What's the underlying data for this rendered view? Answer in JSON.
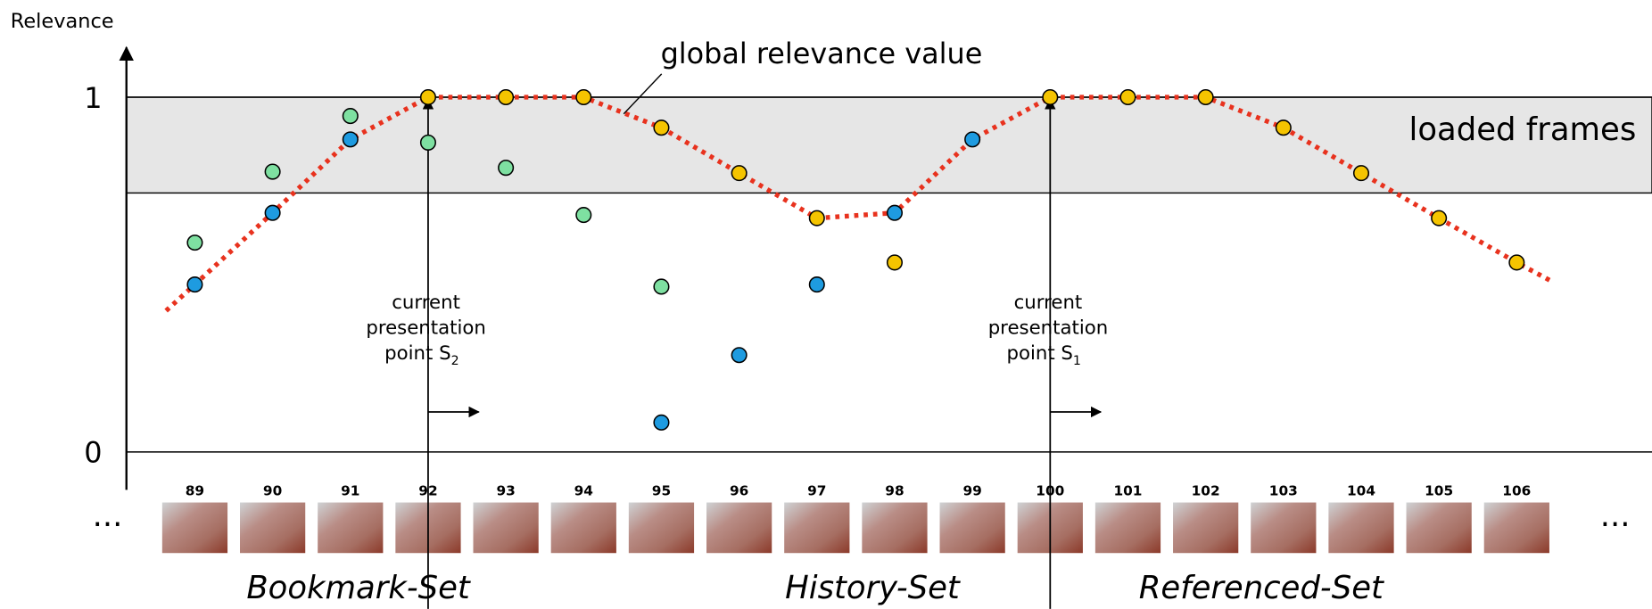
{
  "chart_data": {
    "type": "scatter",
    "y_label": "Relevance",
    "ylim": [
      0,
      1.14
    ],
    "yticks": [
      0,
      1
    ],
    "xlim": [
      88.12,
      107.74
    ],
    "xticks": [
      89,
      90,
      91,
      92,
      93,
      94,
      95,
      96,
      97,
      98,
      99,
      100,
      101,
      102,
      103,
      104,
      105,
      106
    ],
    "line": {
      "color": "#e8321e",
      "style": "dotted",
      "x": [
        88.63,
        89,
        90,
        91,
        92,
        93,
        94,
        95,
        96,
        97,
        98,
        99,
        100,
        101,
        102,
        103,
        104,
        105,
        106,
        106.45
      ],
      "values": [
        0.398,
        0.472,
        0.674,
        0.881,
        1,
        1,
        1,
        0.914,
        0.786,
        0.659,
        0.674,
        0.881,
        1,
        1,
        1,
        0.914,
        0.786,
        0.659,
        0.534,
        0.481
      ]
    },
    "series": [
      {
        "color": "#7ee0a1",
        "x": [
          89,
          90,
          91,
          92,
          93,
          94,
          95
        ],
        "values": [
          0.59,
          0.79,
          0.947,
          0.872,
          0.801,
          0.668,
          0.466
        ]
      },
      {
        "color": "#1e9be0",
        "x": [
          89,
          90,
          91,
          95,
          96,
          97,
          98,
          99
        ],
        "values": [
          0.472,
          0.674,
          0.881,
          0.083,
          0.273,
          0.472,
          0.674,
          0.881
        ]
      },
      {
        "color": "#f5c400",
        "x": [
          92,
          93,
          94,
          95,
          96,
          97,
          98,
          100,
          101,
          102,
          103,
          104,
          105,
          106
        ],
        "values": [
          1,
          1,
          1,
          0.914,
          0.786,
          0.659,
          0.534,
          1,
          1,
          1,
          0.914,
          0.786,
          0.659,
          0.534
        ]
      }
    ],
    "band": {
      "range": [
        0.73,
        1
      ],
      "color": "#e6e6e6",
      "label": "loaded frames"
    },
    "line_label": "global relevance value",
    "presentation_points": [
      {
        "x": 92,
        "lines": [
          "current",
          "presentation",
          "point S"
        ],
        "subscript": "2"
      },
      {
        "x": 100,
        "lines": [
          "current",
          "presentation",
          "point S"
        ],
        "subscript": "1"
      }
    ],
    "sets": [
      "Bookmark-Set",
      "History-Set",
      "Referenced-Set"
    ],
    "ellipsis": [
      "···",
      "···"
    ]
  }
}
